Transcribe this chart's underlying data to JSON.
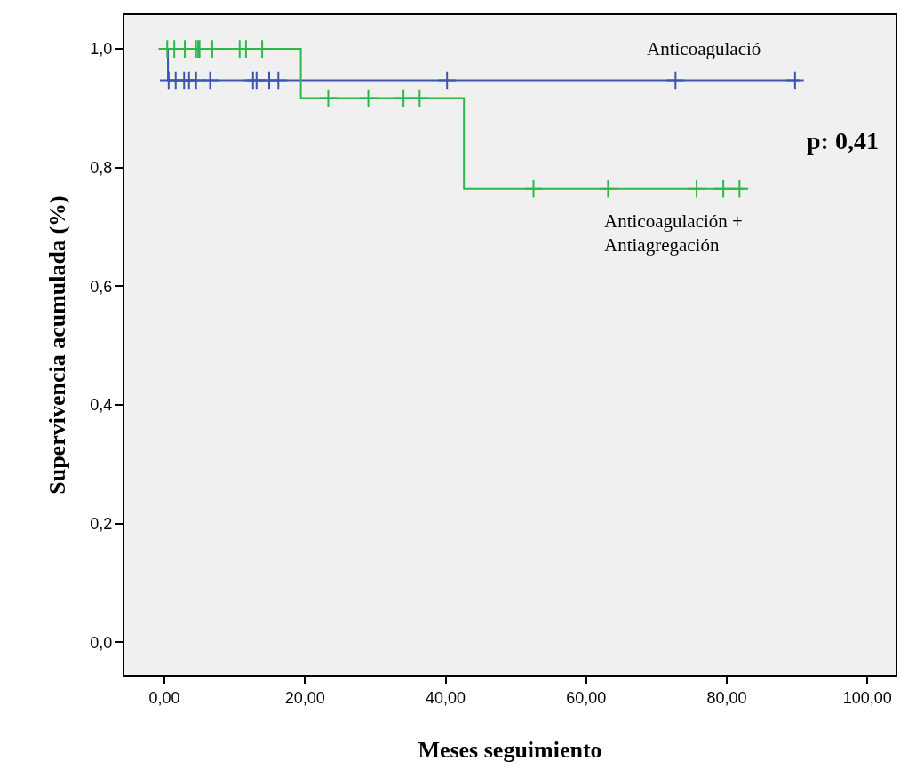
{
  "chart_data": {
    "type": "step",
    "xlabel": "Meses seguimiento",
    "ylabel": "Supervivencia acumulada (%)",
    "xlim": [
      -5.7,
      104
    ],
    "ylim": [
      -0.055,
      1.057
    ],
    "xticks": [
      {
        "value": 0,
        "label": "0,00"
      },
      {
        "value": 20,
        "label": "20,00"
      },
      {
        "value": 40,
        "label": "40,00"
      },
      {
        "value": 60,
        "label": "60,00"
      },
      {
        "value": 80,
        "label": "80,00"
      },
      {
        "value": 100,
        "label": "100,00"
      }
    ],
    "yticks": [
      {
        "value": 0,
        "label": "0,0"
      },
      {
        "value": 0.2,
        "label": "0,2"
      },
      {
        "value": 0.4,
        "label": "0,4"
      },
      {
        "value": 0.6,
        "label": "0,6"
      },
      {
        "value": 0.8,
        "label": "0,8"
      },
      {
        "value": 1.0,
        "label": "1,0"
      }
    ],
    "grid": false,
    "series": [
      {
        "color": "#3e55b0",
        "x": [
          0,
          0.5,
          90.4
        ],
        "values": [
          1,
          0.947,
          0.947
        ]
      },
      {
        "color": "#2db84a",
        "x": [
          0,
          19.4,
          42.6,
          82.5
        ],
        "values": [
          1,
          0.917,
          0.764,
          0.764
        ]
      },
      {
        "type": "scatter",
        "marker": "cross",
        "color": "#3e55b0",
        "x": [
          0.6,
          1.6,
          2.8,
          3.5,
          4.5,
          6.5,
          12.6,
          13.1,
          14.9,
          16.2,
          40.2,
          72.7,
          89.7
        ],
        "values": [
          0.947,
          0.947,
          0.947,
          0.947,
          0.947,
          0.947,
          0.947,
          0.947,
          0.947,
          0.947,
          0.947,
          0.947,
          0.947
        ]
      },
      {
        "type": "scatter",
        "marker": "cross",
        "color": "#2db84a",
        "x": [
          0.4,
          1.4,
          2.9,
          4.5,
          4.8,
          5.0,
          6.8,
          10.7,
          11.6,
          13.9,
          23.3,
          29.0,
          34.0,
          36.3,
          52.5,
          63.1,
          75.7,
          79.5,
          81.8
        ],
        "values": [
          1,
          1,
          1,
          1,
          1,
          1,
          1,
          1,
          1,
          1,
          0.917,
          0.917,
          0.917,
          0.917,
          0.764,
          0.764,
          0.764,
          0.764,
          0.764
        ]
      }
    ],
    "annotations": [
      "Anticoagulació",
      "Anticoagulación +\nAntiagregación",
      "p: 0,41"
    ]
  }
}
